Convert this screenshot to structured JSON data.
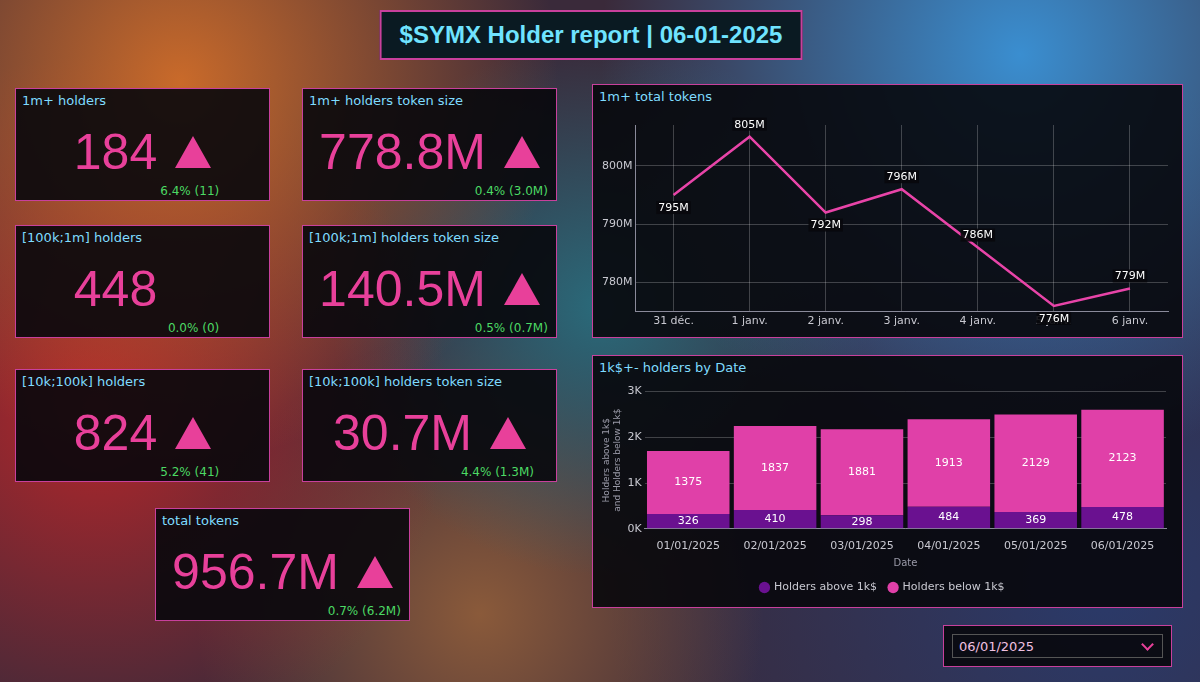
{
  "title": "$SYMX Holder report | 06-01-2025",
  "cards": [
    {
      "title": "1m+ holders",
      "value": "184",
      "direction": "up",
      "change": "6.4% (11)"
    },
    {
      "title": "1m+ holders token size",
      "value": "778.8M",
      "direction": "up",
      "change": "0.4% (3.0M)"
    },
    {
      "title": "[100k;1m] holders",
      "value": "448",
      "direction": "flat",
      "change": "0.0% (0)"
    },
    {
      "title": "[100k;1m] holders token size",
      "value": "140.5M",
      "direction": "up",
      "change": "0.5% (0.7M)"
    },
    {
      "title": "[10k;100k] holders",
      "value": "824",
      "direction": "up",
      "change": "5.2% (41)"
    },
    {
      "title": "[10k;100k] holders token size",
      "value": "30.7M",
      "direction": "up",
      "change": "4.4% (1.3M)"
    },
    {
      "title": "total tokens",
      "value": "956.7M",
      "direction": "up",
      "change": "0.7% (6.2M)"
    }
  ],
  "chart_data": [
    {
      "type": "line",
      "title": "1m+ total tokens",
      "categories": [
        "31 déc.",
        "1 janv.",
        "2 janv.",
        "3 janv.",
        "4 janv.",
        "5 janv.",
        "6 janv."
      ],
      "values": [
        795,
        805,
        792,
        796,
        786,
        776,
        779
      ],
      "value_labels": [
        "795M",
        "805M",
        "792M",
        "796M",
        "786M",
        "776M",
        "779M"
      ],
      "color": "#e844a8",
      "marker": "none",
      "ylim": [
        775,
        807
      ],
      "yticks": [
        {
          "value": 780,
          "label": "780M"
        },
        {
          "value": 790,
          "label": "790M"
        },
        {
          "value": 800,
          "label": "800M"
        }
      ],
      "grid": true,
      "data_labels": true
    },
    {
      "type": "bar",
      "title": "1k$+- holders by Date",
      "x_label": "Date",
      "y_label": "Holders above 1k$ and Holders below 1k$",
      "categories": [
        "01/01/2025",
        "02/01/2025",
        "03/01/2025",
        "04/01/2025",
        "05/01/2025",
        "06/01/2025"
      ],
      "series": [
        {
          "name": "Holders above 1k$",
          "color": "#6a1190",
          "values": [
            326,
            410,
            298,
            484,
            369,
            478
          ]
        },
        {
          "name": "Holders below 1k$",
          "color": "#e040a8",
          "values": [
            1375,
            1837,
            1881,
            1913,
            2129,
            2123
          ]
        }
      ],
      "stacked": true,
      "ylim": [
        0,
        3000
      ],
      "yticks": [
        {
          "value": 0,
          "label": "0K"
        },
        {
          "value": 1000,
          "label": "1K"
        },
        {
          "value": 2000,
          "label": "2K"
        },
        {
          "value": 3000,
          "label": "3K"
        }
      ],
      "grid": true,
      "legend": "bottom",
      "data_labels": true
    }
  ],
  "filter": {
    "value": "06/01/2025"
  }
}
